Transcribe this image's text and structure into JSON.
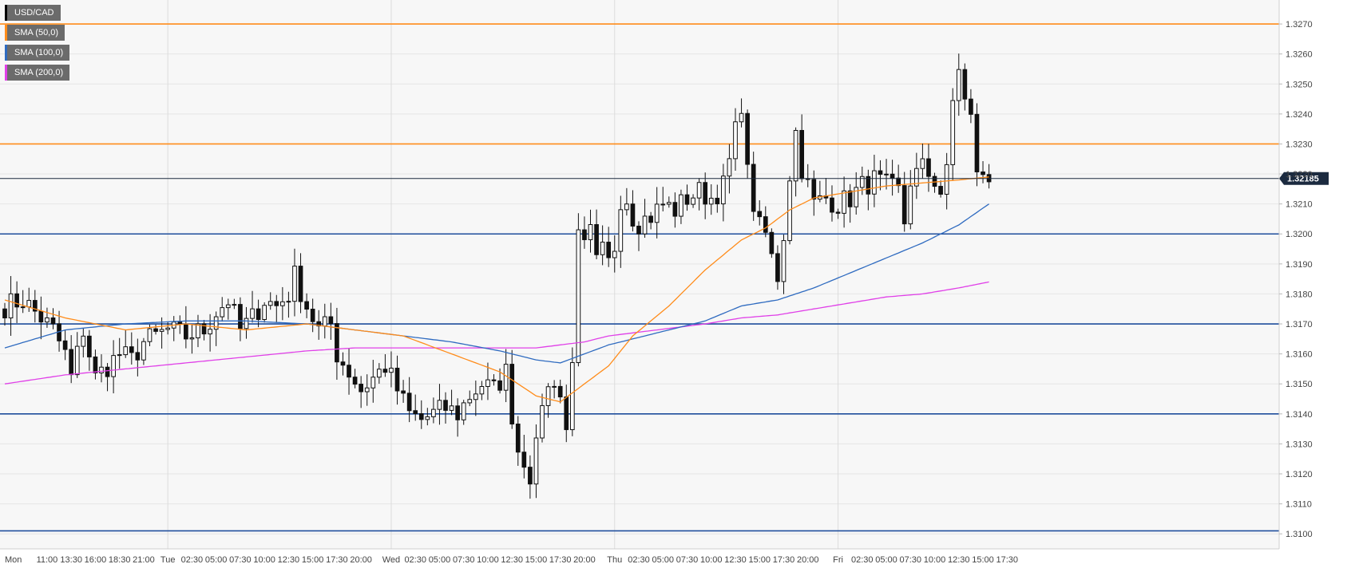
{
  "chart_data": {
    "type": "candlestick",
    "symbol": "USD/CAD",
    "legend": [
      {
        "label": "USD/CAD",
        "color": "#000000"
      },
      {
        "label": "SMA (50,0)",
        "color": "#ff8c1a"
      },
      {
        "label": "SMA (100,0)",
        "color": "#2f6bc0"
      },
      {
        "label": "SMA (200,0)",
        "color": "#e040e8"
      }
    ],
    "y_axis": {
      "position": "right",
      "range": [
        1.3095,
        1.3278
      ],
      "ticks": [
        "1.3100",
        "1.3110",
        "1.3120",
        "1.3130",
        "1.3140",
        "1.3150",
        "1.3160",
        "1.3170",
        "1.3180",
        "1.3190",
        "1.3200",
        "1.3210",
        "1.3220",
        "1.3230",
        "1.3240",
        "1.3250",
        "1.3260",
        "1.3270"
      ]
    },
    "x_axis": {
      "domain": [
        0,
        210
      ],
      "ticks": [
        {
          "label": "Mon",
          "x": 0
        },
        {
          "label": "11:00",
          "x": 7
        },
        {
          "label": "13:30",
          "x": 11
        },
        {
          "label": "16:00",
          "x": 15
        },
        {
          "label": "18:30",
          "x": 19
        },
        {
          "label": "21:00",
          "x": 23
        },
        {
          "label": "Tue",
          "x": 27
        },
        {
          "label": "02:30",
          "x": 31
        },
        {
          "label": "05:00",
          "x": 35
        },
        {
          "label": "07:30",
          "x": 39
        },
        {
          "label": "10:00",
          "x": 43
        },
        {
          "label": "12:30",
          "x": 47
        },
        {
          "label": "15:00",
          "x": 51
        },
        {
          "label": "17:30",
          "x": 55
        },
        {
          "label": "20:00",
          "x": 59
        },
        {
          "label": "Wed",
          "x": 64
        },
        {
          "label": "02:30",
          "x": 68
        },
        {
          "label": "05:00",
          "x": 72
        },
        {
          "label": "07:30",
          "x": 76
        },
        {
          "label": "10:00",
          "x": 80
        },
        {
          "label": "12:30",
          "x": 84
        },
        {
          "label": "15:00",
          "x": 88
        },
        {
          "label": "17:30",
          "x": 92
        },
        {
          "label": "20:00",
          "x": 96
        },
        {
          "label": "Thu",
          "x": 101
        },
        {
          "label": "02:30",
          "x": 105
        },
        {
          "label": "05:00",
          "x": 109
        },
        {
          "label": "07:30",
          "x": 113
        },
        {
          "label": "10:00",
          "x": 117
        },
        {
          "label": "12:30",
          "x": 121
        },
        {
          "label": "15:00",
          "x": 125
        },
        {
          "label": "17:30",
          "x": 129
        },
        {
          "label": "20:00",
          "x": 133
        },
        {
          "label": "Fri",
          "x": 138
        },
        {
          "label": "02:30",
          "x": 142
        },
        {
          "label": "05:00",
          "x": 146
        },
        {
          "label": "07:30",
          "x": 150
        },
        {
          "label": "10:00",
          "x": 154
        },
        {
          "label": "12:30",
          "x": 158
        },
        {
          "label": "15:00",
          "x": 162
        },
        {
          "label": "17:30",
          "x": 166
        }
      ]
    },
    "day_separators": [
      27,
      64,
      101,
      138
    ],
    "last_price": {
      "value": 1.32185,
      "label": "1.32185"
    },
    "horizontal_levels": [
      {
        "value": 1.327,
        "color": "#ff8c1a"
      },
      {
        "value": 1.323,
        "color": "#ff8c1a"
      },
      {
        "value": 1.32,
        "color": "#1f4e9c"
      },
      {
        "value": 1.317,
        "color": "#1f4e9c"
      },
      {
        "value": 1.314,
        "color": "#1f4e9c"
      },
      {
        "value": 1.3101,
        "color": "#1f4e9c"
      }
    ],
    "anchors": [
      [
        0,
        1.3176
      ],
      [
        3,
        1.3178
      ],
      [
        6,
        1.3172
      ],
      [
        8,
        1.3168
      ],
      [
        10,
        1.316
      ],
      [
        11,
        1.3152
      ],
      [
        13,
        1.3168
      ],
      [
        14,
        1.316
      ],
      [
        15,
        1.3152
      ],
      [
        17,
        1.3156
      ],
      [
        19,
        1.316
      ],
      [
        21,
        1.3158
      ],
      [
        23,
        1.3164
      ],
      [
        25,
        1.3166
      ],
      [
        27,
        1.3168
      ],
      [
        30,
        1.3166
      ],
      [
        33,
        1.3168
      ],
      [
        35,
        1.3174
      ],
      [
        37,
        1.3178
      ],
      [
        39,
        1.3168
      ],
      [
        41,
        1.3172
      ],
      [
        43,
        1.3178
      ],
      [
        45,
        1.3176
      ],
      [
        47,
        1.318
      ],
      [
        48,
        1.3186
      ],
      [
        50,
        1.3176
      ],
      [
        52,
        1.3168
      ],
      [
        54,
        1.317
      ],
      [
        55,
        1.316
      ],
      [
        57,
        1.3154
      ],
      [
        59,
        1.3148
      ],
      [
        61,
        1.3152
      ],
      [
        63,
        1.3156
      ],
      [
        65,
        1.3148
      ],
      [
        67,
        1.314
      ],
      [
        69,
        1.3138
      ],
      [
        71,
        1.314
      ],
      [
        73,
        1.3142
      ],
      [
        75,
        1.314
      ],
      [
        77,
        1.3146
      ],
      [
        79,
        1.315
      ],
      [
        81,
        1.3148
      ],
      [
        83,
        1.3154
      ],
      [
        84,
        1.314
      ],
      [
        85,
        1.3128
      ],
      [
        86,
        1.3125
      ],
      [
        87,
        1.312
      ],
      [
        88,
        1.3128
      ],
      [
        89,
        1.3145
      ],
      [
        90,
        1.3148
      ],
      [
        91,
        1.3152
      ],
      [
        92,
        1.3146
      ],
      [
        93,
        1.3134
      ],
      [
        94,
        1.316
      ],
      [
        95,
        1.3198
      ],
      [
        96,
        1.3195
      ],
      [
        97,
        1.32
      ],
      [
        98,
        1.319
      ],
      [
        99,
        1.3194
      ],
      [
        100,
        1.319
      ],
      [
        101,
        1.3196
      ],
      [
        102,
        1.3212
      ],
      [
        103,
        1.3212
      ],
      [
        104,
        1.3206
      ],
      [
        105,
        1.3204
      ],
      [
        107,
        1.3206
      ],
      [
        109,
        1.321
      ],
      [
        111,
        1.3208
      ],
      [
        113,
        1.3212
      ],
      [
        115,
        1.3214
      ],
      [
        117,
        1.3212
      ],
      [
        119,
        1.3216
      ],
      [
        120,
        1.3224
      ],
      [
        121,
        1.3234
      ],
      [
        122,
        1.3244
      ],
      [
        123,
        1.322
      ],
      [
        124,
        1.321
      ],
      [
        125,
        1.3202
      ],
      [
        126,
        1.32
      ],
      [
        127,
        1.3192
      ],
      [
        128,
        1.3186
      ],
      [
        129,
        1.32
      ],
      [
        130,
        1.322
      ],
      [
        131,
        1.3234
      ],
      [
        132,
        1.3222
      ],
      [
        133,
        1.3216
      ],
      [
        134,
        1.321
      ],
      [
        136,
        1.3212
      ],
      [
        138,
        1.321
      ],
      [
        140,
        1.3212
      ],
      [
        142,
        1.3216
      ],
      [
        144,
        1.3218
      ],
      [
        146,
        1.3216
      ],
      [
        148,
        1.3214
      ],
      [
        149,
        1.3204
      ],
      [
        150,
        1.3218
      ],
      [
        152,
        1.3222
      ],
      [
        154,
        1.3218
      ],
      [
        155,
        1.3214
      ],
      [
        156,
        1.322
      ],
      [
        157,
        1.3244
      ],
      [
        158,
        1.3256
      ],
      [
        159,
        1.3244
      ],
      [
        160,
        1.3238
      ],
      [
        161,
        1.3222
      ],
      [
        162,
        1.3218
      ],
      [
        163,
        1.3218
      ]
    ],
    "sma_50": [
      [
        0,
        1.3178
      ],
      [
        10,
        1.3172
      ],
      [
        20,
        1.3168
      ],
      [
        30,
        1.317
      ],
      [
        40,
        1.3168
      ],
      [
        50,
        1.317
      ],
      [
        58,
        1.3168
      ],
      [
        66,
        1.3166
      ],
      [
        74,
        1.316
      ],
      [
        82,
        1.3154
      ],
      [
        88,
        1.3146
      ],
      [
        92,
        1.3144
      ],
      [
        96,
        1.315
      ],
      [
        100,
        1.3156
      ],
      [
        104,
        1.3166
      ],
      [
        110,
        1.3176
      ],
      [
        116,
        1.3188
      ],
      [
        122,
        1.3198
      ],
      [
        126,
        1.3202
      ],
      [
        130,
        1.3208
      ],
      [
        134,
        1.3212
      ],
      [
        140,
        1.3214
      ],
      [
        146,
        1.3216
      ],
      [
        152,
        1.3217
      ],
      [
        158,
        1.3218
      ],
      [
        163,
        1.3219
      ]
    ],
    "sma_100": [
      [
        0,
        1.3162
      ],
      [
        10,
        1.3168
      ],
      [
        20,
        1.317
      ],
      [
        30,
        1.3171
      ],
      [
        40,
        1.3171
      ],
      [
        50,
        1.317
      ],
      [
        58,
        1.3168
      ],
      [
        66,
        1.3166
      ],
      [
        74,
        1.3164
      ],
      [
        82,
        1.3161
      ],
      [
        88,
        1.3158
      ],
      [
        92,
        1.3157
      ],
      [
        96,
        1.316
      ],
      [
        100,
        1.3163
      ],
      [
        108,
        1.3167
      ],
      [
        116,
        1.3171
      ],
      [
        122,
        1.3176
      ],
      [
        128,
        1.3178
      ],
      [
        134,
        1.3182
      ],
      [
        140,
        1.3187
      ],
      [
        146,
        1.3192
      ],
      [
        152,
        1.3197
      ],
      [
        158,
        1.3203
      ],
      [
        163,
        1.321
      ]
    ],
    "sma_200": [
      [
        0,
        1.315
      ],
      [
        10,
        1.3153
      ],
      [
        20,
        1.3155
      ],
      [
        30,
        1.3157
      ],
      [
        40,
        1.3159
      ],
      [
        50,
        1.3161
      ],
      [
        58,
        1.3162
      ],
      [
        66,
        1.3162
      ],
      [
        74,
        1.3162
      ],
      [
        82,
        1.3162
      ],
      [
        88,
        1.3162
      ],
      [
        92,
        1.3163
      ],
      [
        96,
        1.3164
      ],
      [
        100,
        1.3166
      ],
      [
        108,
        1.3168
      ],
      [
        116,
        1.317
      ],
      [
        122,
        1.3172
      ],
      [
        128,
        1.3173
      ],
      [
        134,
        1.3175
      ],
      [
        140,
        1.3177
      ],
      [
        146,
        1.3179
      ],
      [
        152,
        1.318
      ],
      [
        158,
        1.3182
      ],
      [
        163,
        1.3184
      ]
    ]
  }
}
